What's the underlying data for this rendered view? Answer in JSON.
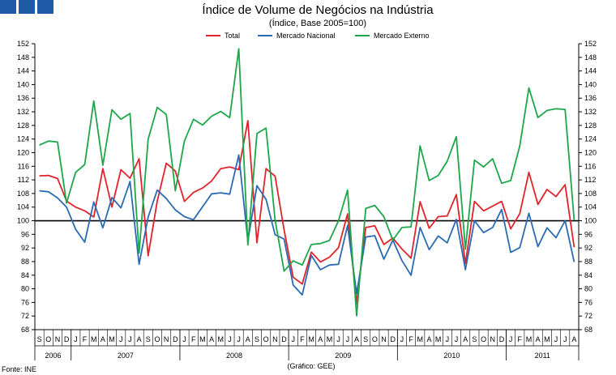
{
  "chart_data": {
    "type": "line",
    "title": "Índice de Volume de Negócios na Indústria",
    "subtitle": "(Índice, Base 2005=100)",
    "source": "Fonte: INE",
    "credit": "(Gráfico: GEE)",
    "ylim": [
      68,
      152
    ],
    "yticks": [
      68,
      72,
      76,
      80,
      84,
      88,
      92,
      96,
      100,
      104,
      108,
      112,
      116,
      120,
      124,
      128,
      132,
      136,
      140,
      144,
      148,
      152
    ],
    "reference_line": 100,
    "months": [
      "S",
      "O",
      "N",
      "D",
      "J",
      "F",
      "M",
      "A",
      "M",
      "J",
      "J",
      "A",
      "S",
      "O",
      "N",
      "D",
      "J",
      "F",
      "M",
      "A",
      "M",
      "J",
      "J",
      "A",
      "S",
      "O",
      "N",
      "D",
      "J",
      "F",
      "M",
      "A",
      "M",
      "J",
      "J",
      "A",
      "S",
      "O",
      "N",
      "D",
      "J",
      "F",
      "M",
      "A",
      "M",
      "J",
      "J",
      "A",
      "S",
      "O",
      "N",
      "D",
      "J",
      "F",
      "M",
      "A",
      "M",
      "J",
      "J",
      "A"
    ],
    "years": [
      {
        "label": "2006",
        "start": 0,
        "count": 4
      },
      {
        "label": "2007",
        "start": 4,
        "count": 12
      },
      {
        "label": "2008",
        "start": 16,
        "count": 12
      },
      {
        "label": "2009",
        "start": 28,
        "count": 12
      },
      {
        "label": "2010",
        "start": 40,
        "count": 12
      },
      {
        "label": "2011",
        "start": 52,
        "count": 8
      }
    ],
    "series": [
      {
        "name": "Total",
        "color": "#e3232b",
        "values": [
          113.2,
          113.3,
          112.4,
          105.8,
          104.0,
          102.9,
          101.1,
          115.3,
          104.0,
          115.0,
          112.5,
          118.2,
          89.7,
          105.8,
          116.9,
          114.6,
          105.7,
          108.3,
          109.6,
          111.7,
          115.3,
          115.8,
          115.0,
          129.4,
          93.5,
          115.3,
          113.1,
          97.3,
          83.4,
          81.4,
          90.8,
          87.9,
          89.3,
          92.1,
          102.0,
          75.7,
          98.0,
          98.5,
          93.0,
          94.9,
          91.7,
          89.0,
          105.6,
          97.8,
          101.2,
          101.4,
          107.7,
          87.4,
          105.7,
          102.9,
          104.3,
          105.7,
          97.6,
          102.1,
          114.2,
          104.8,
          109.2,
          107.1,
          110.6,
          92.2
        ]
      },
      {
        "name": "Mercado Nacional",
        "color": "#2a6bb3",
        "values": [
          108.8,
          108.5,
          106.7,
          104.0,
          97.5,
          93.7,
          105.5,
          97.9,
          106.8,
          103.8,
          111.5,
          87.2,
          101.1,
          109.0,
          106.5,
          103.2,
          101.2,
          100.3,
          104.1,
          107.9,
          108.2,
          107.8,
          119.3,
          94.0,
          110.3,
          106.3,
          95.9,
          94.6,
          81.1,
          78.2,
          89.8,
          85.6,
          87.0,
          87.2,
          98.6,
          78.6,
          95.2,
          95.6,
          88.7,
          94.3,
          88.3,
          84.0,
          98.0,
          91.5,
          95.5,
          93.5,
          100.4,
          85.6,
          100.0,
          96.5,
          98.0,
          103.3,
          90.7,
          92.1,
          102.2,
          92.4,
          97.9,
          95.0,
          100.0,
          87.9
        ]
      },
      {
        "name": "Mercado Externo",
        "color": "#1da64a",
        "values": [
          122.2,
          123.4,
          123.1,
          105.2,
          114.2,
          116.5,
          135.2,
          116.3,
          132.6,
          129.8,
          131.5,
          90.5,
          124.0,
          133.3,
          131.2,
          108.8,
          123.4,
          129.8,
          128.1,
          130.7,
          132.1,
          130.3,
          150.5,
          92.9,
          125.6,
          127.2,
          100.2,
          85.2,
          88.2,
          87.0,
          93.0,
          93.3,
          94.2,
          100.0,
          109.0,
          72.1,
          103.6,
          104.5,
          101.2,
          94.3,
          98.0,
          98.2,
          122.0,
          111.8,
          113.3,
          117.5,
          124.7,
          91.6,
          117.8,
          115.8,
          118.2,
          111.0,
          111.8,
          122.0,
          139.0,
          130.3,
          132.4,
          132.9,
          132.7,
          100.1
        ]
      }
    ]
  }
}
